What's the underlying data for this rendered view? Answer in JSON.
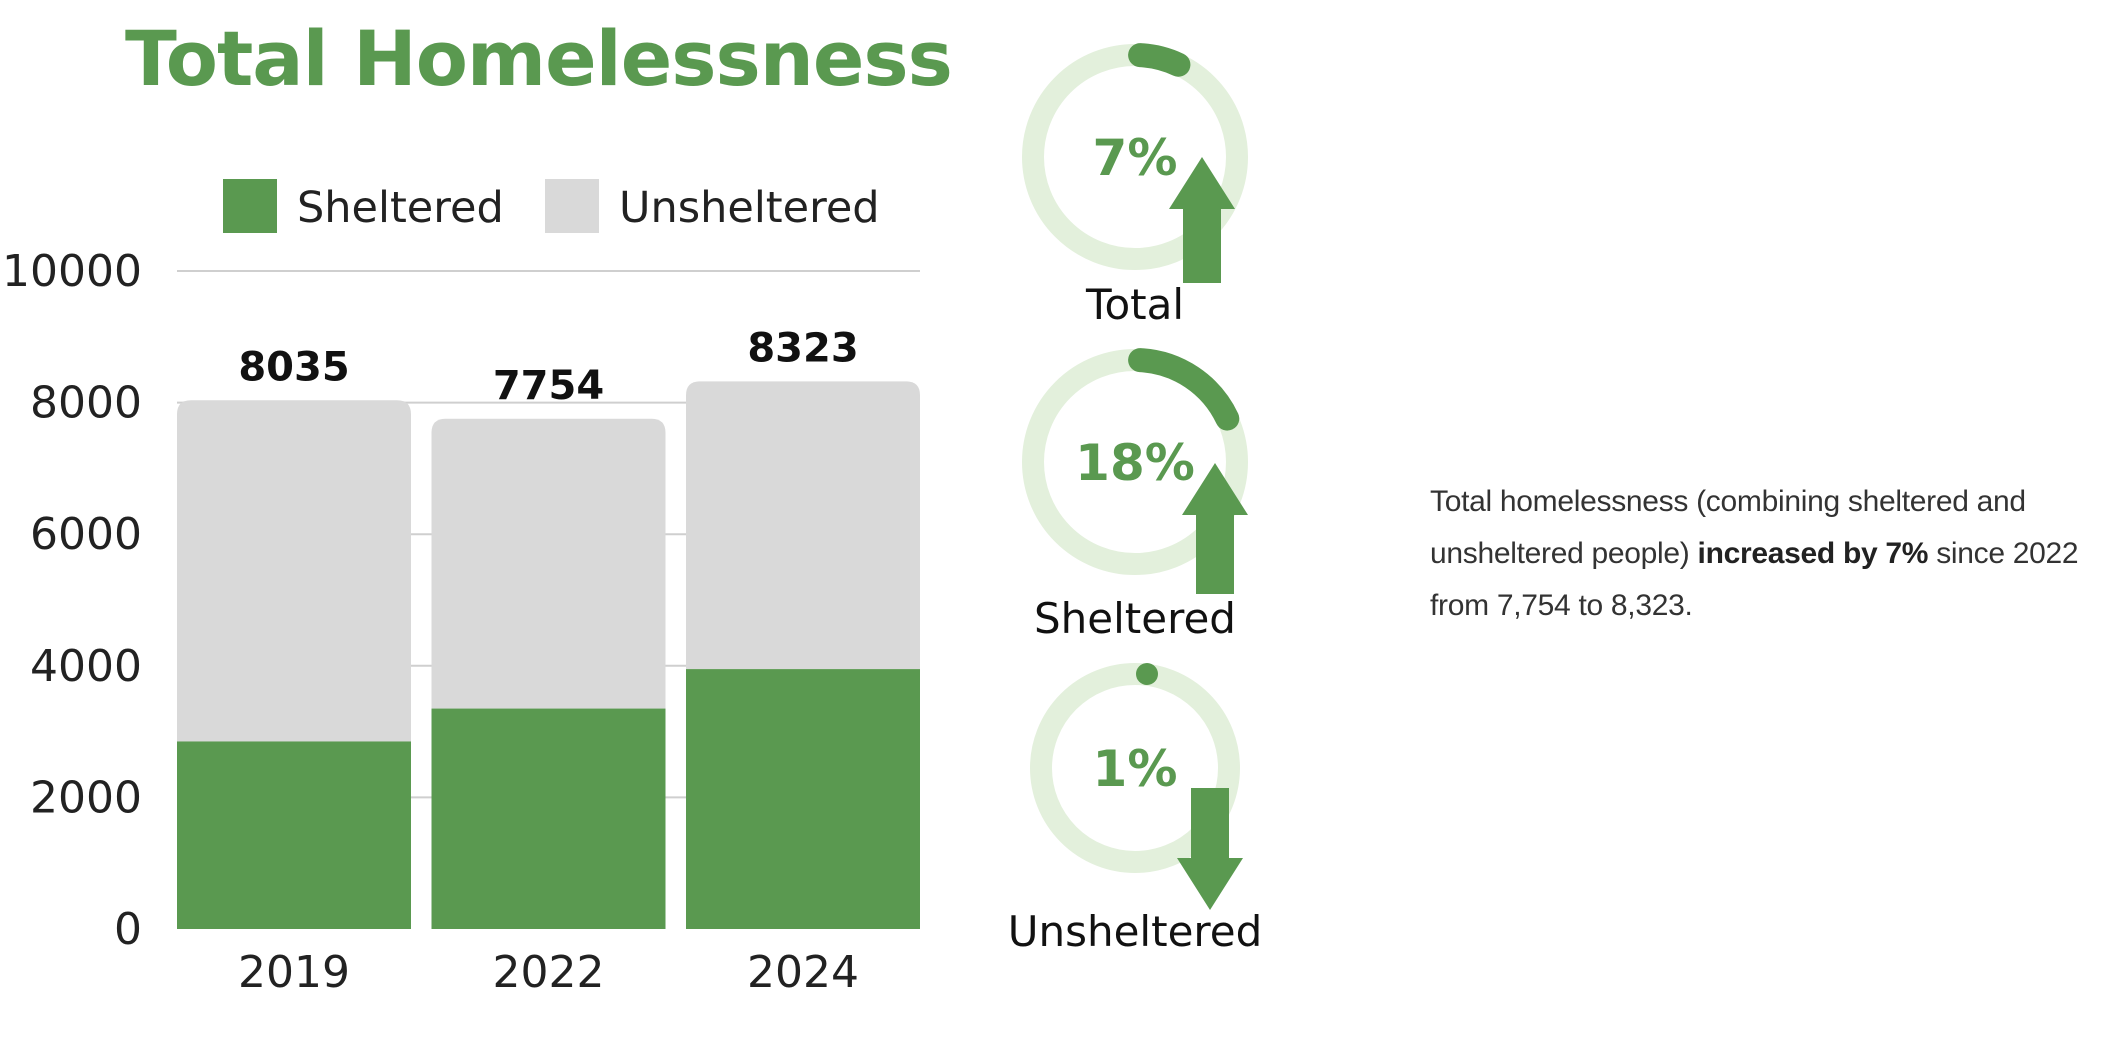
{
  "title": "Total Homelessness",
  "colors": {
    "accent": "#5a9950",
    "sheltered": "#5a9950",
    "unsheltered": "#d9d9d9",
    "gauge_track": "#e3f0dc",
    "grid": "#cfcfcf"
  },
  "chart_data": {
    "type": "bar",
    "stacked": true,
    "title": "Total Homelessness",
    "categories": [
      "2019",
      "2022",
      "2024"
    ],
    "series": [
      {
        "name": "Sheltered",
        "values": [
          2850,
          3350,
          3950
        ]
      },
      {
        "name": "Unsheltered",
        "values": [
          5185,
          4404,
          4373
        ]
      }
    ],
    "totals": [
      8035,
      7754,
      8323
    ],
    "ylim": [
      0,
      10000
    ],
    "yticks": [
      0,
      2000,
      4000,
      6000,
      8000,
      10000
    ],
    "xlabel": "",
    "ylabel": "",
    "legend": "top",
    "grid": true
  },
  "gauges": [
    {
      "label": "Total",
      "pct": "7%",
      "value": 0.07,
      "direction": "up",
      "icon": "arrow-up-icon"
    },
    {
      "label": "Sheltered",
      "pct": "18%",
      "value": 0.18,
      "direction": "up",
      "icon": "arrow-up-icon"
    },
    {
      "label": "Unsheltered",
      "pct": "1%",
      "value": 0.01,
      "direction": "down",
      "icon": "arrow-down-icon"
    }
  ],
  "summary": {
    "part1": "Total homelessness (combining sheltered and unsheltered people) ",
    "bold": "increased by 7%",
    "part2": " since 2022 from 7,754 to 8,323."
  }
}
